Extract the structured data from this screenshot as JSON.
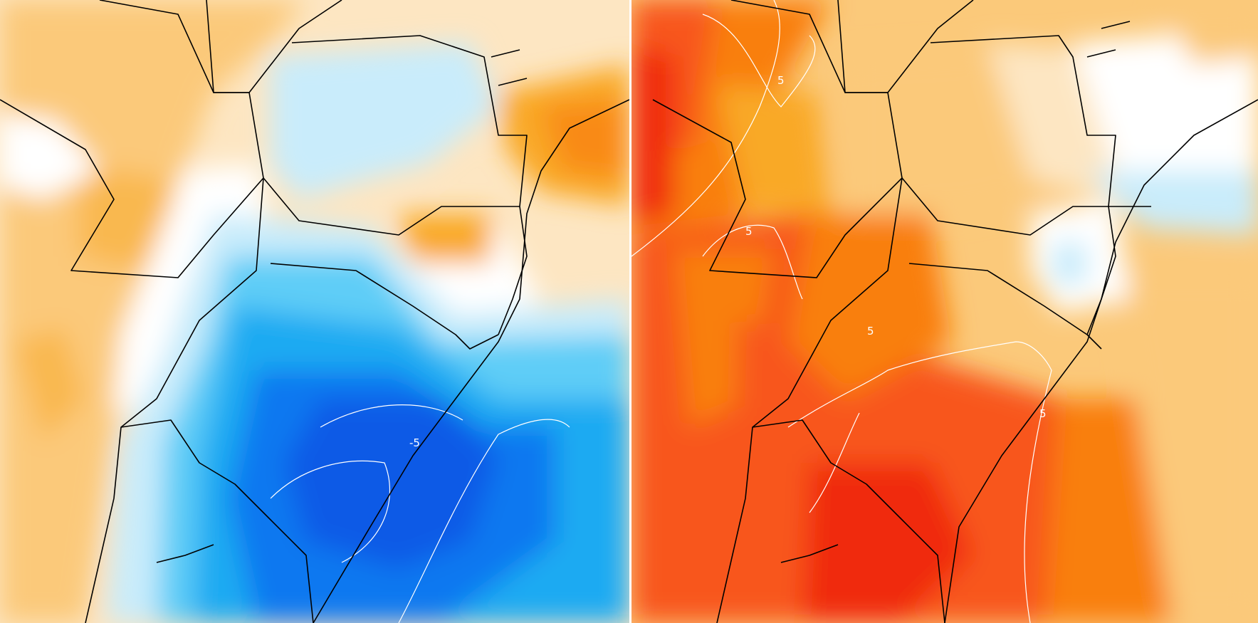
{
  "panels": [
    {
      "name": "left-anomaly-map",
      "contour_labels": [
        {
          "text": "-5"
        }
      ]
    },
    {
      "name": "right-anomaly-map",
      "contour_labels": [
        {
          "text": "5"
        },
        {
          "text": "5"
        },
        {
          "text": "5"
        },
        {
          "text": "5"
        }
      ]
    }
  ],
  "colors": {
    "white": "#ffffff",
    "blue_light": "#c9ecfb",
    "blue_mid": "#5fcdf7",
    "blue_strong": "#1aaaf2",
    "blue_deep": "#0a78f0",
    "blue_core": "#0a5ae6",
    "orange_pale": "#fde6c2",
    "orange_light": "#fbc97a",
    "orange_mid": "#f9a928",
    "orange_strong": "#f97f10",
    "red_orange": "#f8561a",
    "red": "#f02b0e",
    "borders": "#000000"
  }
}
